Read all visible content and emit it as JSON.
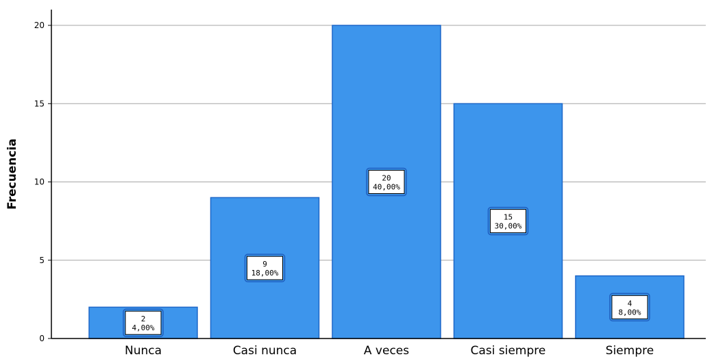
{
  "chart_data": {
    "type": "bar",
    "categories": [
      "Nunca",
      "Casi nunca",
      "A veces",
      "Casi siempre",
      "Siempre"
    ],
    "values": [
      2,
      9,
      20,
      15,
      4
    ],
    "data_labels": [
      [
        "2",
        "4,00%"
      ],
      [
        "9",
        "18,00%"
      ],
      [
        "20",
        "40,00%"
      ],
      [
        "15",
        "30,00%"
      ],
      [
        "4",
        "8,00%"
      ]
    ],
    "ylabel": "Frecuencia",
    "xlabel": "",
    "ylim": [
      0,
      20
    ],
    "yticks": [
      "0",
      "5",
      "10",
      "15",
      "20"
    ],
    "grid": true,
    "colors": {
      "bar": "#3d95ec",
      "bar_edge": "#1d67c8",
      "grid": "#a6a6a6",
      "axis": "#000000"
    }
  }
}
